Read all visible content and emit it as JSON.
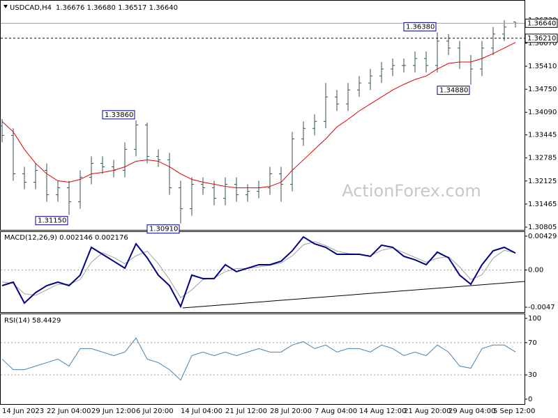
{
  "chart_data": [
    {
      "type": "ohlc",
      "title": "USDCAD,H4",
      "subtitle": "1.36676 1.36680 1.36517 1.36640",
      "watermark": "ActionForex.com",
      "categories": [
        "14 Jun 2023",
        null,
        null,
        null,
        "22 Jun 04:00",
        null,
        null,
        null,
        "29 Jun 12:00",
        null,
        null,
        null,
        "6 Jul 20:00",
        null,
        null,
        null,
        "14 Jul 04:00",
        null,
        null,
        null,
        "21 Jul 12:00",
        null,
        null,
        null,
        "28 Jul 20:00",
        null,
        null,
        null,
        "7 Aug 04:00",
        null,
        null,
        null,
        "14 Aug 12:00",
        null,
        null,
        null,
        "21 Aug 20:00",
        null,
        null,
        null,
        "29 Aug 04:00",
        null,
        null,
        null,
        "5 Sep 12:00",
        null,
        null
      ],
      "open": [
        1.337,
        1.3343,
        1.3233,
        1.3209,
        1.3243,
        1.3173,
        1.3193,
        1.3153,
        1.3223,
        1.3263,
        1.3253,
        1.3243,
        1.3303,
        1.3373,
        1.3283,
        1.3273,
        1.3193,
        1.3133,
        1.3203,
        1.3193,
        1.3163,
        1.3203,
        1.3173,
        1.3183,
        1.3193,
        1.3233,
        1.3203,
        1.3333,
        1.3363,
        1.3383,
        1.3453,
        1.3433,
        1.3473,
        1.3493,
        1.3513,
        1.3533,
        1.3543,
        1.3543,
        1.3563,
        1.3543,
        1.3613,
        1.3593,
        1.3553,
        1.3533,
        1.3593,
        1.3633,
        1.36676
      ],
      "high": [
        1.339,
        1.3363,
        1.3253,
        1.3263,
        1.3263,
        1.3213,
        1.3213,
        1.3243,
        1.3283,
        1.3283,
        1.3273,
        1.3323,
        1.3386,
        1.338,
        1.3303,
        1.3293,
        1.3213,
        1.3223,
        1.3223,
        1.3213,
        1.3223,
        1.3223,
        1.3203,
        1.3213,
        1.3253,
        1.3253,
        1.3353,
        1.3383,
        1.3403,
        1.3493,
        1.3473,
        1.3493,
        1.3513,
        1.3533,
        1.3553,
        1.3563,
        1.3563,
        1.3583,
        1.3583,
        1.3638,
        1.3633,
        1.3613,
        1.3573,
        1.3613,
        1.3653,
        1.3673,
        1.3668
      ],
      "low": [
        1.3323,
        1.3213,
        1.3189,
        1.3189,
        1.3153,
        1.3153,
        1.3115,
        1.3133,
        1.3203,
        1.3233,
        1.3223,
        1.3223,
        1.3283,
        1.3263,
        1.3253,
        1.3173,
        1.3091,
        1.3113,
        1.3173,
        1.3143,
        1.3143,
        1.3153,
        1.3153,
        1.3163,
        1.3173,
        1.3153,
        1.3183,
        1.3313,
        1.3343,
        1.3363,
        1.3413,
        1.3413,
        1.3453,
        1.3473,
        1.3493,
        1.3513,
        1.3523,
        1.3523,
        1.3523,
        1.3523,
        1.3573,
        1.3533,
        1.3488,
        1.3513,
        1.3573,
        1.3613,
        1.36517
      ],
      "close": [
        1.3343,
        1.3233,
        1.3209,
        1.3243,
        1.3173,
        1.3193,
        1.3153,
        1.3223,
        1.3263,
        1.3253,
        1.3243,
        1.3303,
        1.3373,
        1.3283,
        1.3273,
        1.3193,
        1.3133,
        1.3203,
        1.3193,
        1.3163,
        1.3203,
        1.3173,
        1.3183,
        1.3193,
        1.3233,
        1.3203,
        1.3333,
        1.3363,
        1.3383,
        1.3453,
        1.3433,
        1.3473,
        1.3493,
        1.3513,
        1.3533,
        1.3543,
        1.3543,
        1.3563,
        1.3543,
        1.3613,
        1.3593,
        1.3553,
        1.3533,
        1.3593,
        1.3633,
        1.3653,
        1.3664
      ],
      "color": "#2f4f4f",
      "ma": [
        1.3383,
        1.3353,
        1.3303,
        1.3263,
        1.3233,
        1.3213,
        1.3209,
        1.3217,
        1.3233,
        1.3237,
        1.3243,
        1.3253,
        1.3269,
        1.3273,
        1.3269,
        1.3253,
        1.3233,
        1.3217,
        1.3209,
        1.3203,
        1.3197,
        1.3193,
        1.3193,
        1.3193,
        1.3197,
        1.3209,
        1.3243,
        1.3273,
        1.3303,
        1.3333,
        1.3367,
        1.3389,
        1.3413,
        1.3433,
        1.3453,
        1.3473,
        1.3489,
        1.3503,
        1.3513,
        1.3533,
        1.3549,
        1.3553,
        1.3553,
        1.3563,
        1.3577,
        1.3593,
        1.3609
      ],
      "ma_color": "#e00000",
      "ylim": [
        1.30725,
        1.37285
      ],
      "yticks": [
        {
          "value": 1.3673,
          "label": "1.36730"
        },
        {
          "value": 1.3607,
          "label": "1.36070"
        },
        {
          "value": 1.3541,
          "label": "1.35410"
        },
        {
          "value": 1.3475,
          "label": "1.34750"
        },
        {
          "value": 1.3409,
          "label": "1.34090"
        },
        {
          "value": 1.33445,
          "label": "1.33445"
        },
        {
          "value": 1.32785,
          "label": "1.32785"
        },
        {
          "value": 1.32125,
          "label": "1.32125"
        },
        {
          "value": 1.31465,
          "label": "1.31465"
        },
        {
          "value": 1.30805,
          "label": "1.30805"
        }
      ],
      "price_lines": [
        {
          "value": 1.3664,
          "label": "1.36640",
          "style": "solid"
        },
        {
          "value": 1.3621,
          "label": "1.36210",
          "style": "dashed"
        }
      ],
      "annotations": [
        {
          "value": 1.3386,
          "label": "1.33860"
        },
        {
          "value": 1.3115,
          "label": "1.31150"
        },
        {
          "value": 1.3091,
          "label": "1.30910"
        },
        {
          "value": 1.3638,
          "label": "1.36380"
        },
        {
          "value": 1.3488,
          "label": "1.34880"
        }
      ]
    },
    {
      "type": "line",
      "title": "MACD(12,26,9) 0.002146 0.002176",
      "series": [
        {
          "color": "#000080",
          "values": [
            -0.00197,
            -0.00152,
            -0.00417,
            -0.00285,
            -0.00197,
            -0.00152,
            -0.00197,
            -0.00064,
            0.00288,
            0.002,
            0.00112,
            0.00024,
            0.00332,
            0.00156,
            -0.00064,
            -0.00197,
            -0.00461,
            -0.00064,
            -0.00108,
            -0.00108,
            0.00068,
            -0.0002,
            0.00024,
            0.00068,
            0.00068,
            0.00112,
            0.00244,
            0.0042,
            0.00332,
            0.00288,
            0.002,
            0.002,
            0.002,
            0.00174,
            0.00315,
            0.00288,
            0.00174,
            0.0013,
            0.00068,
            0.00227,
            0.00156,
            -0.00064,
            -0.00179,
            0.00068,
            0.00244,
            0.00288,
            0.00215
          ]
        },
        {
          "color": "#a0a0a0",
          "values": [
            -0.0015,
            -0.0017,
            -0.003,
            -0.0032,
            -0.0025,
            -0.0018,
            -0.0018,
            -0.0012,
            0.001,
            0.0022,
            0.0016,
            0.0008,
            0.0018,
            0.0024,
            0.0008,
            -0.0012,
            -0.0035,
            -0.0025,
            -0.0012,
            -0.001,
            -0.0002,
            0.0002,
            0.0002,
            0.0004,
            0.0006,
            0.0009,
            0.0018,
            0.0032,
            0.0036,
            0.0031,
            0.0024,
            0.0021,
            0.002,
            0.0018,
            0.0025,
            0.0028,
            0.0022,
            0.0016,
            0.001,
            0.0015,
            0.0017,
            0.0004,
            -0.0012,
            -0.0006,
            0.0015,
            0.0025,
            0.00218
          ]
        }
      ],
      "ylim": [
        -0.00532,
        0.00482
      ],
      "yticks": [
        0.00429,
        {
          "value": 0,
          "label": "0.00"
        },
        -0.0047
      ],
      "levels": [
        0
      ]
    },
    {
      "type": "line",
      "title": "RSI(14) 58.4429",
      "series": [
        {
          "color": "#4682b4",
          "values": [
            49.6,
            36.5,
            36.5,
            40.9,
            45.2,
            49.6,
            40.9,
            62.6,
            62.6,
            58.3,
            53.9,
            58.3,
            75.7,
            49.6,
            45.2,
            36.5,
            23.5,
            53.9,
            58.3,
            53.9,
            58.3,
            53.9,
            58.3,
            62.6,
            58.3,
            58.3,
            67.0,
            71.3,
            62.6,
            67.0,
            58.3,
            62.6,
            62.6,
            58.3,
            67.0,
            62.6,
            53.9,
            58.3,
            53.9,
            67.0,
            58.3,
            40.9,
            38.3,
            62.6,
            67.0,
            67.0,
            58.4429
          ]
        }
      ],
      "ylim": [
        -6.1,
        105.2
      ],
      "yticks": [
        100,
        70,
        30,
        0
      ],
      "levels": [
        70,
        30
      ]
    }
  ]
}
